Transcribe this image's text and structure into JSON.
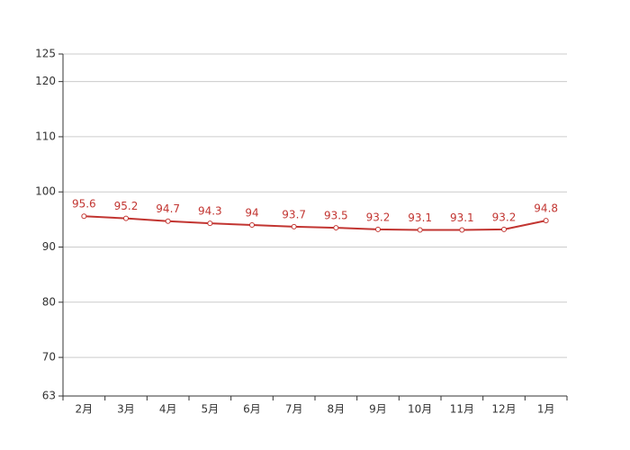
{
  "chart_data": {
    "type": "line",
    "categories": [
      "2月",
      "3月",
      "4月",
      "5月",
      "6月",
      "7月",
      "8月",
      "9月",
      "10月",
      "11月",
      "12月",
      "1月"
    ],
    "values": [
      95.6,
      95.2,
      94.7,
      94.3,
      94,
      93.7,
      93.5,
      93.2,
      93.1,
      93.1,
      93.2,
      94.8
    ],
    "color": "#c23531",
    "ylim": [
      63,
      125
    ],
    "yticks": [
      63,
      70,
      80,
      90,
      100,
      110,
      120,
      125
    ],
    "grid": true
  }
}
